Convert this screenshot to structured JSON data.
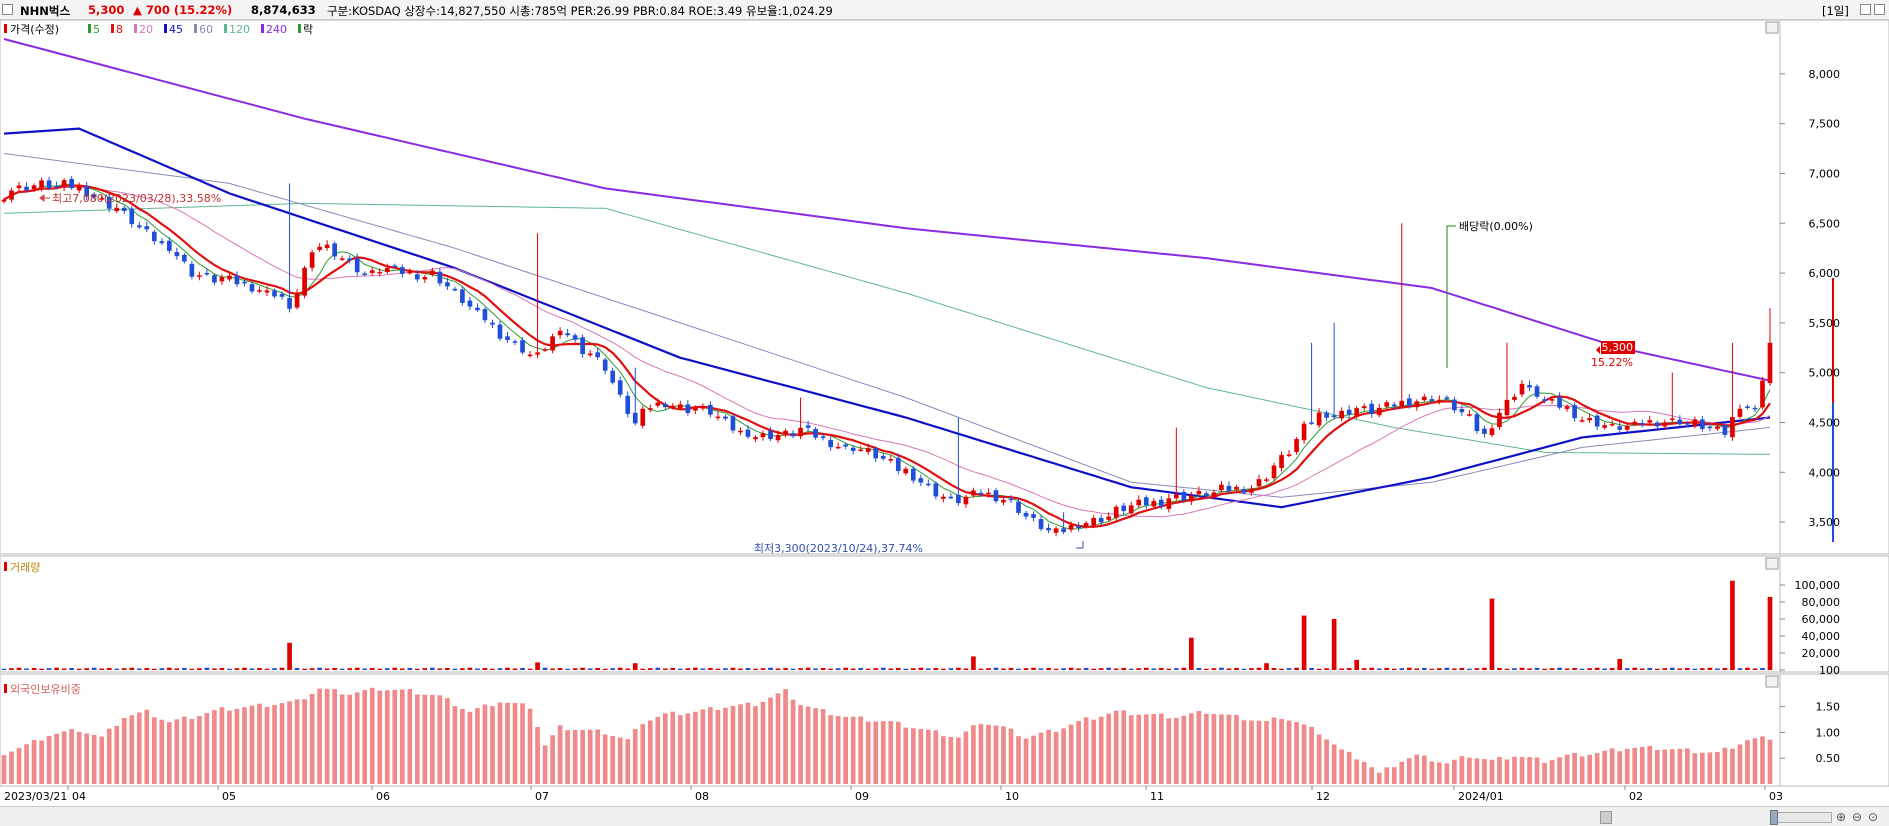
{
  "header": {
    "name": "NHN벅스",
    "price": "5,300",
    "change": "▲ 700 (15.22%)",
    "volume": "8,874,633",
    "info": "구분:KOSDAQ 상장수:14,827,550 시총:785억 PER:26.99 PBR:0.84 ROE:3.49 유보율:1,024.29",
    "period": "[1일]"
  },
  "legend": {
    "price": "가격(수정)",
    "ma": [
      "5",
      "8",
      "20",
      "45",
      "60",
      "120",
      "240"
    ],
    "ex": "락",
    "volume": "거래량",
    "foreign": "외국인보유비중"
  },
  "colors": {
    "up": "#e00000",
    "down": "#1f4fd8",
    "ma5": "#2f9a2f",
    "ma8": "#e01010",
    "ma20": "#d878b8",
    "ma45": "#1010c8",
    "ma60": "#8a8ab8",
    "ma120": "#5fb88f",
    "ma240": "#8a2be2",
    "foreign_bar": "#f08a8a"
  },
  "annotations": {
    "high": "최고7,080(2023/03/28),33.58%",
    "low": "최저3,300(2023/10/24),37.74%",
    "dividend": "배당락(0.00%)"
  },
  "right_marker": {
    "price": "5,300",
    "pct": "15.22%"
  },
  "chart_data": [
    {
      "type": "candlestick",
      "title": "",
      "x_tick_labels": [
        "2023/03/21",
        "04",
        "05",
        "06",
        "07",
        "08",
        "09",
        "10",
        "11",
        "12",
        "2024/01",
        "02",
        "03"
      ],
      "ylim": [
        3200,
        8400
      ],
      "y_ticks": [
        3500,
        4000,
        4500,
        5000,
        5500,
        6000,
        6500,
        7000,
        7500,
        8000
      ],
      "y_tick_labels": [
        "3,500",
        "4,000",
        "4,500",
        "5,000",
        "5,500",
        "6,000",
        "6,500",
        "7,000",
        "7,500",
        "8,000"
      ],
      "anchors": [
        [
          0,
          6800
        ],
        [
          5,
          6900
        ],
        [
          10,
          6850
        ],
        [
          14,
          6700
        ],
        [
          18,
          6450
        ],
        [
          22,
          6250
        ],
        [
          25,
          6000
        ],
        [
          28,
          5950
        ],
        [
          31,
          5900
        ],
        [
          34,
          5850
        ],
        [
          37,
          5750
        ],
        [
          38,
          5600
        ],
        [
          40,
          6050
        ],
        [
          42,
          6300
        ],
        [
          45,
          6150
        ],
        [
          48,
          6000
        ],
        [
          51,
          6030
        ],
        [
          54,
          6000
        ],
        [
          57,
          5980
        ],
        [
          60,
          5800
        ],
        [
          63,
          5600
        ],
        [
          66,
          5380
        ],
        [
          69,
          5250
        ],
        [
          71,
          5150
        ],
        [
          73,
          5350
        ],
        [
          75,
          5400
        ],
        [
          77,
          5250
        ],
        [
          80,
          5050
        ],
        [
          82,
          4750
        ],
        [
          84,
          4500
        ],
        [
          86,
          4650
        ],
        [
          88,
          4700
        ],
        [
          91,
          4650
        ],
        [
          94,
          4600
        ],
        [
          97,
          4450
        ],
        [
          100,
          4350
        ],
        [
          103,
          4380
        ],
        [
          106,
          4420
        ],
        [
          109,
          4330
        ],
        [
          112,
          4250
        ],
        [
          115,
          4200
        ],
        [
          118,
          4100
        ],
        [
          121,
          3950
        ],
        [
          124,
          3800
        ],
        [
          127,
          3700
        ],
        [
          130,
          3800
        ],
        [
          133,
          3750
        ],
        [
          136,
          3550
        ],
        [
          139,
          3420
        ],
        [
          141,
          3400
        ],
        [
          143,
          3480
        ],
        [
          145,
          3520
        ],
        [
          148,
          3600
        ],
        [
          151,
          3680
        ],
        [
          154,
          3720
        ],
        [
          157,
          3750
        ],
        [
          160,
          3800
        ],
        [
          163,
          3820
        ],
        [
          166,
          3850
        ],
        [
          169,
          4050
        ],
        [
          171,
          4200
        ],
        [
          173,
          4450
        ],
        [
          175,
          4600
        ],
        [
          177,
          4550
        ],
        [
          180,
          4650
        ],
        [
          183,
          4620
        ],
        [
          186,
          4700
        ],
        [
          189,
          4750
        ],
        [
          192,
          4700
        ],
        [
          195,
          4550
        ],
        [
          197,
          4350
        ],
        [
          199,
          4600
        ],
        [
          202,
          4900
        ],
        [
          205,
          4700
        ],
        [
          208,
          4650
        ],
        [
          211,
          4500
        ],
        [
          214,
          4450
        ],
        [
          217,
          4480
        ],
        [
          220,
          4500
        ],
        [
          223,
          4530
        ],
        [
          226,
          4450
        ],
        [
          229,
          4400
        ],
        [
          231,
          4700
        ],
        [
          233,
          4600
        ],
        [
          235,
          5300
        ]
      ],
      "spikes": [
        [
          38,
          6900
        ],
        [
          71,
          6400
        ],
        [
          84,
          5050
        ],
        [
          106,
          4750
        ],
        [
          127,
          4550
        ],
        [
          141,
          3600
        ],
        [
          156,
          4450
        ],
        [
          174,
          5300
        ],
        [
          177,
          5500
        ],
        [
          186,
          6500
        ],
        [
          200,
          5300
        ],
        [
          222,
          5000
        ],
        [
          230,
          5300
        ],
        [
          235,
          5650
        ]
      ],
      "ma_lines": {
        "ma240": [
          [
            0,
            8350
          ],
          [
            40,
            7550
          ],
          [
            80,
            6850
          ],
          [
            120,
            6450
          ],
          [
            160,
            6150
          ],
          [
            190,
            5850
          ],
          [
            215,
            5250
          ],
          [
            235,
            4920
          ]
        ],
        "ma120": [
          [
            0,
            6600
          ],
          [
            40,
            6700
          ],
          [
            80,
            6650
          ],
          [
            120,
            5800
          ],
          [
            160,
            4850
          ],
          [
            185,
            4450
          ],
          [
            205,
            4200
          ],
          [
            235,
            4180
          ]
        ],
        "ma60": [
          [
            0,
            7200
          ],
          [
            30,
            6900
          ],
          [
            60,
            6250
          ],
          [
            90,
            5500
          ],
          [
            120,
            4750
          ],
          [
            150,
            3900
          ],
          [
            170,
            3750
          ],
          [
            190,
            3900
          ],
          [
            210,
            4250
          ],
          [
            235,
            4450
          ]
        ],
        "ma45": [
          [
            0,
            7400
          ],
          [
            10,
            7450
          ],
          [
            30,
            6800
          ],
          [
            60,
            6050
          ],
          [
            90,
            5150
          ],
          [
            120,
            4550
          ],
          [
            150,
            3850
          ],
          [
            170,
            3650
          ],
          [
            190,
            3950
          ],
          [
            210,
            4350
          ],
          [
            235,
            4550
          ]
        ]
      }
    },
    {
      "type": "bar",
      "title": "",
      "ylim": [
        0,
        120000
      ],
      "y_ticks": [
        100,
        20000,
        40000,
        60000,
        80000,
        100000
      ],
      "y_tick_labels": [
        "100",
        "20,000",
        "40,000",
        "60,000",
        "80,000",
        "100,000"
      ],
      "spike_values": [
        [
          38,
          32000
        ],
        [
          71,
          9000
        ],
        [
          84,
          8000
        ],
        [
          129,
          16000
        ],
        [
          158,
          38000
        ],
        [
          168,
          8000
        ],
        [
          173,
          64000
        ],
        [
          177,
          60000
        ],
        [
          180,
          12000
        ],
        [
          198,
          84000
        ],
        [
          215,
          13000
        ],
        [
          230,
          105000
        ],
        [
          235,
          86000
        ]
      ],
      "base_value": 1500
    },
    {
      "type": "bar",
      "title": "",
      "ylim": [
        0,
        1.9
      ],
      "y_ticks": [
        0.5,
        1.0,
        1.5
      ],
      "y_tick_labels": [
        "0.50",
        "1.00",
        "1.50"
      ],
      "anchors": [
        [
          0,
          0.6
        ],
        [
          3,
          0.75
        ],
        [
          6,
          0.95
        ],
        [
          10,
          1.05
        ],
        [
          13,
          0.9
        ],
        [
          16,
          1.3
        ],
        [
          19,
          1.4
        ],
        [
          22,
          1.2
        ],
        [
          25,
          1.3
        ],
        [
          29,
          1.45
        ],
        [
          33,
          1.5
        ],
        [
          36,
          1.55
        ],
        [
          39,
          1.6
        ],
        [
          42,
          1.85
        ],
        [
          46,
          1.75
        ],
        [
          50,
          1.85
        ],
        [
          54,
          1.8
        ],
        [
          58,
          1.7
        ],
        [
          62,
          1.4
        ],
        [
          66,
          1.6
        ],
        [
          70,
          1.5
        ],
        [
          72,
          0.75
        ],
        [
          74,
          1.1
        ],
        [
          77,
          1.05
        ],
        [
          80,
          1.0
        ],
        [
          83,
          0.85
        ],
        [
          85,
          1.2
        ],
        [
          88,
          1.35
        ],
        [
          92,
          1.4
        ],
        [
          96,
          1.5
        ],
        [
          100,
          1.55
        ],
        [
          104,
          1.8
        ],
        [
          106,
          1.55
        ],
        [
          108,
          1.45
        ],
        [
          112,
          1.3
        ],
        [
          118,
          1.2
        ],
        [
          124,
          1.0
        ],
        [
          127,
          0.9
        ],
        [
          130,
          1.2
        ],
        [
          133,
          1.1
        ],
        [
          136,
          0.9
        ],
        [
          140,
          1.05
        ],
        [
          144,
          1.25
        ],
        [
          148,
          1.4
        ],
        [
          152,
          1.35
        ],
        [
          156,
          1.3
        ],
        [
          160,
          1.4
        ],
        [
          164,
          1.3
        ],
        [
          168,
          1.2
        ],
        [
          170,
          1.3
        ],
        [
          172,
          1.2
        ],
        [
          175,
          1.0
        ],
        [
          178,
          0.65
        ],
        [
          181,
          0.45
        ],
        [
          183,
          0.2
        ],
        [
          186,
          0.45
        ],
        [
          188,
          0.55
        ],
        [
          192,
          0.4
        ],
        [
          195,
          0.55
        ],
        [
          198,
          0.45
        ],
        [
          201,
          0.55
        ],
        [
          205,
          0.45
        ],
        [
          208,
          0.55
        ],
        [
          212,
          0.6
        ],
        [
          216,
          0.7
        ],
        [
          220,
          0.7
        ],
        [
          224,
          0.65
        ],
        [
          228,
          0.6
        ],
        [
          232,
          0.85
        ],
        [
          235,
          0.9
        ]
      ]
    }
  ]
}
